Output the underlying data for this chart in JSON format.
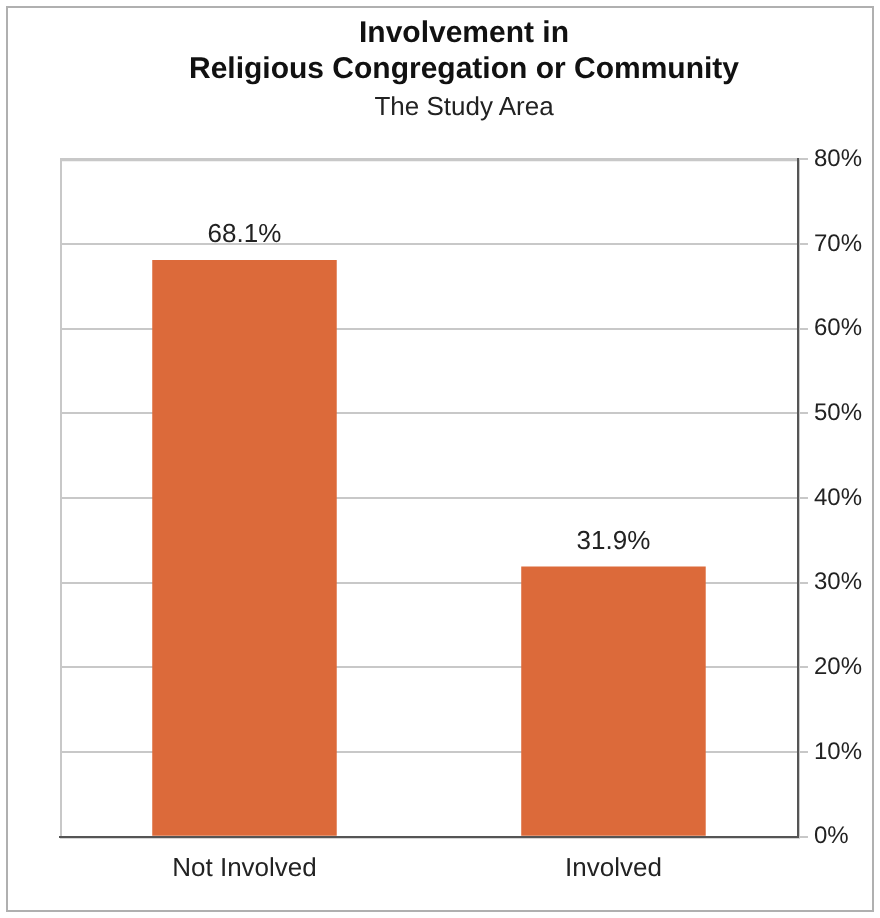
{
  "chart_data": {
    "type": "bar",
    "title": "Involvement in\nReligious Congregation or Community",
    "subtitle": "The Study Area",
    "categories": [
      "Not Involved",
      "Involved"
    ],
    "values": [
      68.1,
      31.9
    ],
    "color": "#dc6a3a",
    "value_labels": [
      "68.1%",
      "31.9%"
    ],
    "ylim": [
      0,
      80
    ],
    "yticks": [
      {
        "value": 0,
        "label": "0%"
      },
      {
        "value": 10,
        "label": "10%"
      },
      {
        "value": 20,
        "label": "20%"
      },
      {
        "value": 30,
        "label": "30%"
      },
      {
        "value": 40,
        "label": "40%"
      },
      {
        "value": 50,
        "label": "50%"
      },
      {
        "value": 60,
        "label": "60%"
      },
      {
        "value": 70,
        "label": "70%"
      },
      {
        "value": 80,
        "label": "80%"
      }
    ],
    "grid": "y",
    "legend": false
  }
}
